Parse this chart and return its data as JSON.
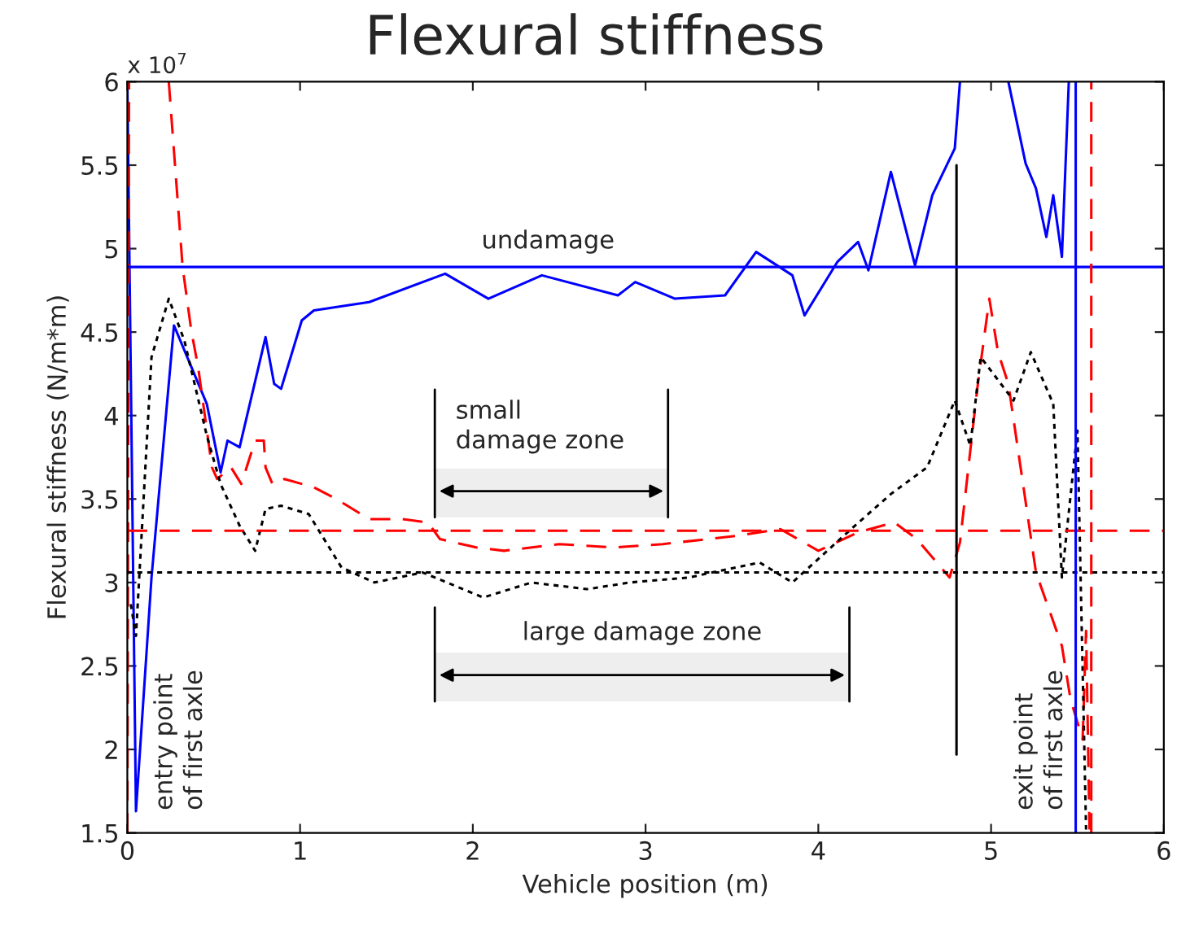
{
  "chart_data": {
    "type": "line",
    "title": "Flexural stiffness",
    "xlabel": "Vehicle position (m)",
    "ylabel": "Flexural stiffness (N/m*m)",
    "xlim": [
      0,
      6
    ],
    "xticks": [
      0,
      1,
      2,
      3,
      4,
      5,
      6
    ],
    "ylim": [
      1.5,
      6
    ],
    "yticks": [
      1.5,
      2,
      2.5,
      3,
      3.5,
      4,
      4.5,
      5,
      5.5,
      6
    ],
    "grid": false,
    "marker": "none",
    "series": [
      {
        "color": "#0000ff",
        "line_style": "solid",
        "x": [
          0,
          0.05,
          0.14,
          0.27,
          0.46,
          0.54,
          0.58,
          0.65,
          0.8,
          0.85,
          0.89,
          1.01,
          1.08,
          1.4,
          1.84,
          2.09,
          2.4,
          2.84,
          2.94,
          3.17,
          3.46,
          3.64,
          3.85,
          3.92,
          4.11,
          4.23,
          4.29,
          4.42,
          4.56,
          4.66,
          4.79,
          4.82,
          4.95,
          5.1,
          5.2,
          5.26,
          5.32,
          5.36,
          5.41,
          5.45
        ],
        "values": [
          6,
          1.63,
          3.03,
          4.54,
          4.07,
          3.66,
          3.85,
          3.81,
          4.47,
          4.19,
          4.16,
          4.57,
          4.63,
          4.68,
          4.85,
          4.7,
          4.84,
          4.72,
          4.8,
          4.7,
          4.72,
          4.98,
          4.84,
          4.6,
          4.92,
          5.04,
          4.87,
          5.46,
          4.9,
          5.32,
          5.6,
          6,
          null,
          6,
          5.51,
          5.36,
          5.07,
          5.32,
          4.95,
          6
        ]
      },
      {
        "color": "#ff0000",
        "line_style": "dashed",
        "x": [
          0,
          0.01,
          0.1,
          0.24,
          0.32,
          0.37,
          0.41,
          0.49,
          0.52,
          0.6,
          0.66,
          0.74,
          0.79,
          0.8,
          0.84,
          0.91,
          1.08,
          1.21,
          1.4,
          1.59,
          1.74,
          1.81,
          2.02,
          2.18,
          2.5,
          2.82,
          3.1,
          3.53,
          3.78,
          4.0,
          4.23,
          4.44,
          4.57,
          4.76,
          4.82,
          4.92,
          4.99,
          5.04,
          5.1,
          5.26,
          5.41,
          5.46,
          5.53,
          5.55,
          5.57
        ],
        "values": [
          1.5,
          6,
          null,
          6,
          4.89,
          4.51,
          4.29,
          3.69,
          3.62,
          3.69,
          3.59,
          3.85,
          3.85,
          3.69,
          3.59,
          3.62,
          3.57,
          3.5,
          3.38,
          3.38,
          3.36,
          3.26,
          3.21,
          3.19,
          3.23,
          3.21,
          3.23,
          3.28,
          3.32,
          3.19,
          3.3,
          3.36,
          3.26,
          3.03,
          3.24,
          4.16,
          4.7,
          4.38,
          4.19,
          3.06,
          2.62,
          2.3,
          2.06,
          2.71,
          1.52
        ]
      },
      {
        "color": "#000000",
        "line_style": "dotted",
        "x": [
          0.02,
          0.05,
          0.14,
          0.24,
          0.33,
          0.46,
          0.54,
          0.65,
          0.74,
          0.8,
          0.89,
          1.05,
          1.24,
          1.43,
          1.71,
          2.06,
          2.34,
          2.66,
          2.91,
          3.25,
          3.66,
          3.85,
          4.19,
          4.42,
          4.63,
          4.79,
          4.88,
          4.94,
          5.13,
          5.23,
          5.36,
          5.41,
          5.5,
          5.55
        ],
        "values": [
          2.87,
          2.68,
          4.35,
          4.7,
          4.45,
          3.88,
          3.59,
          3.34,
          3.19,
          3.44,
          3.46,
          3.41,
          3.09,
          3.0,
          3.06,
          2.91,
          3.0,
          2.96,
          3.0,
          3.03,
          3.12,
          3.0,
          3.32,
          3.53,
          3.69,
          4.09,
          3.82,
          4.35,
          4.09,
          4.38,
          4.07,
          3.03,
          3.91,
          1.52
        ]
      },
      {
        "color": "#000000",
        "line_style": "solid",
        "x": [
          4.8,
          4.8
        ],
        "values": [
          5.5,
          1.97
        ]
      }
    ],
    "ref_lines": [
      {
        "axis": "y",
        "value": 4.89,
        "color": "#0000ff",
        "line_style": "solid"
      },
      {
        "axis": "y",
        "value": 3.31,
        "color": "#ff0000",
        "line_style": "dashed"
      },
      {
        "axis": "y",
        "value": 3.06,
        "color": "#000000",
        "line_style": "dotted"
      },
      {
        "axis": "x",
        "value": 5.49,
        "color": "#0000ff",
        "line_style": "solid"
      },
      {
        "axis": "x",
        "value": 5.58,
        "color": "#ff0000",
        "line_style": "dashed"
      }
    ],
    "bands": [
      {
        "axis": "x",
        "from": 1.78,
        "to": 3.13,
        "label": "small\ndamage zone"
      },
      {
        "axis": "x",
        "from": 1.78,
        "to": 4.18,
        "label": "large damage zone"
      }
    ],
    "annotations": [
      "x 10$^{7}$",
      {
        "text": "undamage",
        "x": 2.05,
        "y": 4.89
      },
      "entry point\nof first axle",
      "exit point\nof first axle"
    ]
  }
}
